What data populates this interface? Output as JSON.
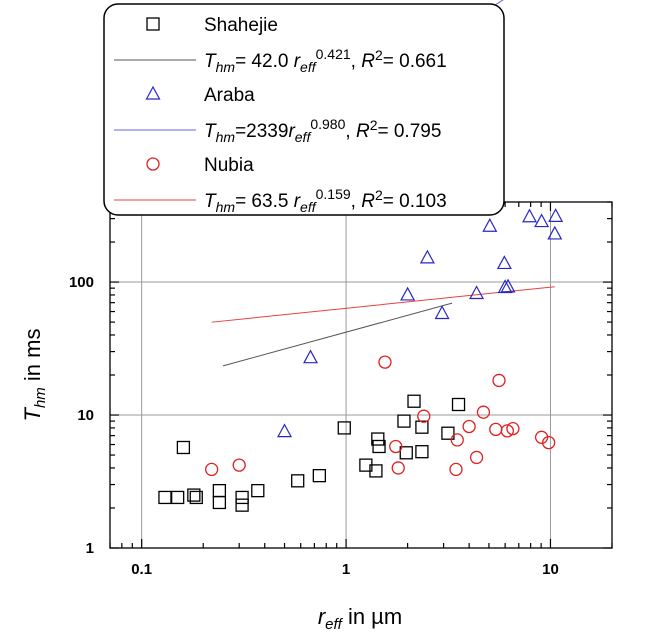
{
  "chart_data": {
    "type": "scatter",
    "x_scale": "log",
    "y_scale": "log",
    "xlim": [
      0.07,
      20
    ],
    "ylim": [
      1,
      400
    ],
    "grid": true,
    "legend_position": "top-left",
    "x_ticks": [
      {
        "value": 0.1,
        "label": "0.1"
      },
      {
        "value": 1,
        "label": "1"
      },
      {
        "value": 10,
        "label": "10"
      }
    ],
    "y_ticks": [
      {
        "value": 1,
        "label": "1"
      },
      {
        "value": 10,
        "label": "10"
      },
      {
        "value": 100,
        "label": "100"
      }
    ],
    "xlabel": {
      "main": "r",
      "sub": "eff",
      "rest": " in µm"
    },
    "ylabel": {
      "main": "T",
      "sub": "hm",
      "rest": " in ms"
    },
    "series": [
      {
        "name": "Shahejie",
        "marker": "square",
        "color": "#000000",
        "fit_color": "#555555",
        "fit": {
          "a": 42.0,
          "b": 0.421,
          "x_range": [
            0.25,
            3.3
          ]
        },
        "equation": {
          "coef": "= 42.0 ",
          "exp": "0.421",
          "r2": "= 0.661",
          "sep": ", "
        },
        "points": [
          [
            0.13,
            2.4
          ],
          [
            0.15,
            2.4
          ],
          [
            0.16,
            5.7
          ],
          [
            0.18,
            2.5
          ],
          [
            0.185,
            2.4
          ],
          [
            0.24,
            2.2
          ],
          [
            0.24,
            2.7
          ],
          [
            0.31,
            2.1
          ],
          [
            0.31,
            2.4
          ],
          [
            0.37,
            2.7
          ],
          [
            0.58,
            3.2
          ],
          [
            0.74,
            3.5
          ],
          [
            0.98,
            8.0
          ],
          [
            1.25,
            4.2
          ],
          [
            1.4,
            3.8
          ],
          [
            1.43,
            6.6
          ],
          [
            1.45,
            5.8
          ],
          [
            1.92,
            9.0
          ],
          [
            1.97,
            5.2
          ],
          [
            2.15,
            12.7
          ],
          [
            2.35,
            8.1
          ],
          [
            2.35,
            5.3
          ],
          [
            3.15,
            7.3
          ],
          [
            3.55,
            12.0
          ]
        ]
      },
      {
        "name": "Araba",
        "marker": "triangle",
        "color": "#2727c8",
        "fit_color": "#6565e0",
        "fit": {
          "a": 2339,
          "b": 0.98,
          "x_range": [
            0.5,
            10.5
          ]
        },
        "equation": {
          "coef": "=2339",
          "exp": "0.980",
          "r2": "= 0.795",
          "sep": ", "
        },
        "points": [
          [
            0.5,
            7.5
          ],
          [
            0.67,
            27
          ],
          [
            2.0,
            80
          ],
          [
            2.5,
            152
          ],
          [
            2.95,
            58
          ],
          [
            4.35,
            82
          ],
          [
            5.05,
            263
          ],
          [
            5.95,
            138
          ],
          [
            6.0,
            91
          ],
          [
            6.2,
            92
          ],
          [
            7.9,
            310
          ],
          [
            9.05,
            285
          ],
          [
            10.5,
            230
          ],
          [
            10.6,
            312
          ]
        ]
      },
      {
        "name": "Nubia",
        "marker": "circle",
        "color": "#e02020",
        "fit_color": "#e84040",
        "fit": {
          "a": 63.5,
          "b": 0.159,
          "x_range": [
            0.22,
            10.5
          ]
        },
        "equation": {
          "coef": "= 63.5 ",
          "exp": "0.159",
          "r2": "= 0.103",
          "sep": ", "
        },
        "points": [
          [
            0.22,
            3.9
          ],
          [
            0.3,
            4.2
          ],
          [
            1.55,
            25
          ],
          [
            1.75,
            5.8
          ],
          [
            1.8,
            4.0
          ],
          [
            2.4,
            9.8
          ],
          [
            3.45,
            3.9
          ],
          [
            3.5,
            6.5
          ],
          [
            4.0,
            8.2
          ],
          [
            4.35,
            4.8
          ],
          [
            4.7,
            10.5
          ],
          [
            5.4,
            7.8
          ],
          [
            5.6,
            18.2
          ],
          [
            6.15,
            7.6
          ],
          [
            6.55,
            7.9
          ],
          [
            9.05,
            6.8
          ],
          [
            9.8,
            6.2
          ]
        ]
      }
    ]
  }
}
